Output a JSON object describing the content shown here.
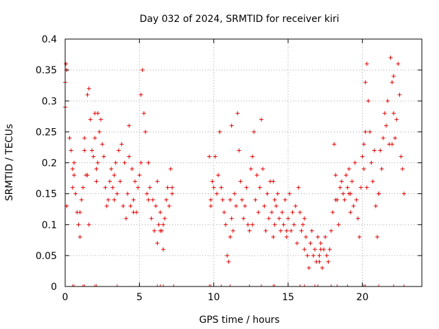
{
  "chart_data": {
    "type": "scatter",
    "title": "Day 032 of 2024, SRMTID for receiver kiri",
    "xlabel": "GPS time / hours",
    "ylabel": "SRMTID / TECUs",
    "xlim": [
      0,
      24
    ],
    "ylim": [
      0,
      0.4
    ],
    "grid": true,
    "marker": "plus",
    "series_color": "#e00000",
    "x_ticks": [
      {
        "value": 0,
        "label": "0"
      },
      {
        "value": 5,
        "label": "5"
      },
      {
        "value": 10,
        "label": "10"
      },
      {
        "value": 15,
        "label": "15"
      },
      {
        "value": 20,
        "label": "20"
      }
    ],
    "y_ticks": [
      {
        "value": 0,
        "label": "0"
      },
      {
        "value": 0.05,
        "label": "0.05"
      },
      {
        "value": 0.1,
        "label": "0.1"
      },
      {
        "value": 0.15,
        "label": "0.15"
      },
      {
        "value": 0.2,
        "label": "0.2"
      },
      {
        "value": 0.25,
        "label": "0.25"
      },
      {
        "value": 0.3,
        "label": "0.3"
      },
      {
        "value": 0.35,
        "label": "0.35"
      },
      {
        "value": 0.4,
        "label": "0.4"
      }
    ],
    "series": [
      {
        "name": "SRMTID",
        "x": [
          0.0,
          0.0,
          0.05,
          0.1,
          0.3,
          0.4,
          0.5,
          0.6,
          0.7,
          0.8,
          0.9,
          1.0,
          1.1,
          1.2,
          1.3,
          1.4,
          1.5,
          1.6,
          1.7,
          1.8,
          1.9,
          2.0,
          2.1,
          2.2,
          2.3,
          2.4,
          2.5,
          2.6,
          2.7,
          2.8,
          2.9,
          3.0,
          3.1,
          3.2,
          3.3,
          3.4,
          3.5,
          3.6,
          3.7,
          3.8,
          3.9,
          4.0,
          4.1,
          4.2,
          4.3,
          4.4,
          4.5,
          4.6,
          4.7,
          4.8,
          4.9,
          5.0,
          5.1,
          5.2,
          5.3,
          5.4,
          5.5,
          5.6,
          5.7,
          5.8,
          5.9,
          6.0,
          6.1,
          6.2,
          6.3,
          6.4,
          6.5,
          6.6,
          6.7,
          6.8,
          6.9,
          7.0,
          7.1,
          7.2,
          9.8,
          9.9,
          10.0,
          10.1,
          10.2,
          10.3,
          10.4,
          10.5,
          10.6,
          10.7,
          10.8,
          10.9,
          11.0,
          11.1,
          11.2,
          11.3,
          11.4,
          11.5,
          11.6,
          11.7,
          11.8,
          11.9,
          12.0,
          12.1,
          12.2,
          12.3,
          12.4,
          12.5,
          12.6,
          12.7,
          12.8,
          12.9,
          13.0,
          13.1,
          13.2,
          13.3,
          13.4,
          13.5,
          13.6,
          13.7,
          13.8,
          13.9,
          14.0,
          14.1,
          14.2,
          14.3,
          14.4,
          14.5,
          14.6,
          14.7,
          14.8,
          14.9,
          15.0,
          15.1,
          15.2,
          15.3,
          15.4,
          15.5,
          15.6,
          15.7,
          15.8,
          15.9,
          16.0,
          16.1,
          16.2,
          16.3,
          16.4,
          16.5,
          16.6,
          16.7,
          16.8,
          16.9,
          17.0,
          17.1,
          17.2,
          17.3,
          17.4,
          17.5,
          17.6,
          17.7,
          17.8,
          17.9,
          18.0,
          18.1,
          18.2,
          18.3,
          18.4,
          18.5,
          18.6,
          18.7,
          18.8,
          18.9,
          19.0,
          19.1,
          19.2,
          19.3,
          19.4,
          19.5,
          19.6,
          19.7,
          19.8,
          19.9,
          20.0,
          20.1,
          20.2,
          20.3,
          20.4,
          20.5,
          20.6,
          20.7,
          20.8,
          20.9,
          21.0,
          21.1,
          21.2,
          21.3,
          21.4,
          21.5,
          21.6,
          21.7,
          21.8,
          21.9,
          22.0,
          22.1,
          22.2,
          22.3,
          22.4,
          22.5,
          22.6,
          22.7,
          22.8,
          0.1,
          0.5,
          0.6,
          1.0,
          1.3,
          1.5,
          1.6,
          2.0,
          2.1,
          2.2,
          3.3,
          4.3,
          4.6,
          5.1,
          5.6,
          6.2,
          6.4,
          6.6,
          7.2,
          9.7,
          9.8,
          11.1,
          11.2,
          12.6,
          14.0,
          14.1,
          14.9,
          16.1,
          17.1,
          17.2,
          18.2,
          19.1,
          19.2,
          20.1,
          20.2,
          20.3,
          21.1,
          22.0,
          22.1
        ],
        "y": [
          0.29,
          0.33,
          0.36,
          0.35,
          0.24,
          0.22,
          0.19,
          0.18,
          0.15,
          0.12,
          0.1,
          0.08,
          0.14,
          0.16,
          0.22,
          0.18,
          0.31,
          0.32,
          0.27,
          0.22,
          0.21,
          0.24,
          0.19,
          0.28,
          0.25,
          0.27,
          0.23,
          0.21,
          0.16,
          0.13,
          0.14,
          0.17,
          0.19,
          0.16,
          0.18,
          0.2,
          0.15,
          0.22,
          0.17,
          0.23,
          0.13,
          0.2,
          0.11,
          0.15,
          0.21,
          0.13,
          0.19,
          0.14,
          0.17,
          0.12,
          0.16,
          0.18,
          0.31,
          0.35,
          0.28,
          0.25,
          0.15,
          0.2,
          0.16,
          0.11,
          0.14,
          0.09,
          0.13,
          0.07,
          0.1,
          0.12,
          0.09,
          0.06,
          0.11,
          0.14,
          0.16,
          0.13,
          0.19,
          0.15,
          0.14,
          0.17,
          0.16,
          0.21,
          0.15,
          0.18,
          0.25,
          0.16,
          0.14,
          0.12,
          0.1,
          0.05,
          0.04,
          0.08,
          0.11,
          0.09,
          0.15,
          0.13,
          0.28,
          0.22,
          0.17,
          0.14,
          0.11,
          0.13,
          0.16,
          0.1,
          0.09,
          0.19,
          0.21,
          0.25,
          0.14,
          0.18,
          0.12,
          0.16,
          0.27,
          0.19,
          0.13,
          0.09,
          0.15,
          0.11,
          0.17,
          0.12,
          0.08,
          0.1,
          0.13,
          0.15,
          0.11,
          0.09,
          0.12,
          0.1,
          0.14,
          0.08,
          0.11,
          0.15,
          0.09,
          0.12,
          0.1,
          0.13,
          0.07,
          0.16,
          0.12,
          0.09,
          0.1,
          0.06,
          0.08,
          0.05,
          0.03,
          0.07,
          0.09,
          0.05,
          0.06,
          0.04,
          0.08,
          0.05,
          0.07,
          0.03,
          0.06,
          0.08,
          0.05,
          0.04,
          0.06,
          0.09,
          0.12,
          0.23,
          0.18,
          0.14,
          0.1,
          0.16,
          0.17,
          0.15,
          0.14,
          0.18,
          0.16,
          0.19,
          0.15,
          0.17,
          0.13,
          0.2,
          0.14,
          0.11,
          0.08,
          0.16,
          0.21,
          0.23,
          0.33,
          0.36,
          0.3,
          0.25,
          0.2,
          0.17,
          0.22,
          0.13,
          0.08,
          0.15,
          0.22,
          0.19,
          0.24,
          0.28,
          0.26,
          0.3,
          0.23,
          0.37,
          0.33,
          0.28,
          0.24,
          0.27,
          0.36,
          0.31,
          0.21,
          0.19,
          0.15,
          0.13,
          0.16,
          0.2,
          0.12,
          0.24,
          0.18,
          0.1,
          0.28,
          0.17,
          0.2,
          0.14,
          0.26,
          0.12,
          0.2,
          0.14,
          0.17,
          0.09,
          0.1,
          0.16,
          0.21,
          0.13,
          0.14,
          0.26,
          0.1,
          0.17,
          0.14,
          0.09,
          0.11,
          0.04,
          0.06,
          0.14,
          0.15,
          0.12,
          0.19,
          0.25,
          0.16,
          0.15,
          0.23,
          0.34
        ]
      }
    ],
    "baseline_markers_x": [
      0.5,
      0.6,
      1.2,
      1.3,
      2.0,
      2.1,
      3.5,
      5.0,
      6.2,
      6.4,
      6.6,
      7.3,
      9.7,
      9.8,
      10.5,
      11.1,
      12.4,
      13.2,
      14.0,
      14.1,
      15.0,
      15.8,
      16.1,
      16.8,
      17.0,
      17.9,
      18.3,
      19.0,
      20.0,
      20.1,
      20.2,
      21.1,
      22.1,
      22.8
    ]
  }
}
